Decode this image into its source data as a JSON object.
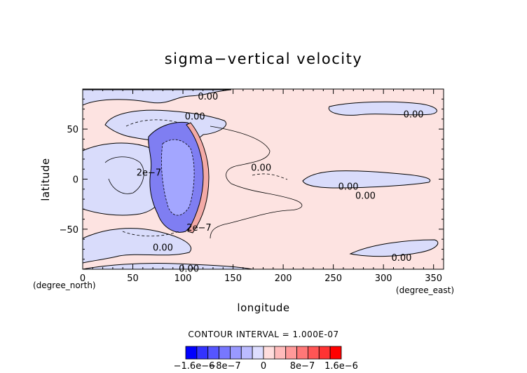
{
  "chart_data": {
    "type": "contour",
    "title": "sigma−vertical velocity",
    "xlabel": "longitude",
    "ylabel": "latitude",
    "xunit": "(degree_east)",
    "yunit": "(degree_north)",
    "xlim": [
      0,
      360
    ],
    "ylim": [
      -90,
      90
    ],
    "xticks": [
      0,
      50,
      100,
      150,
      200,
      250,
      300,
      350
    ],
    "yticks": [
      -50,
      0,
      50
    ],
    "contour_interval_text": "CONTOUR INTERVAL = 1.000E-07",
    "contour_labels": [
      {
        "text": "0.00",
        "lon": 125,
        "lat": 83
      },
      {
        "text": "0.00",
        "lon": 112,
        "lat": 63
      },
      {
        "text": "0.00",
        "lon": 330,
        "lat": 65
      },
      {
        "text": "0.00",
        "lon": 178,
        "lat": 12
      },
      {
        "text": "0.00",
        "lon": 265,
        "lat": -7
      },
      {
        "text": "0.00",
        "lon": 282,
        "lat": -16
      },
      {
        "text": "0.00",
        "lon": 80,
        "lat": -68
      },
      {
        "text": "0.00",
        "lon": 318,
        "lat": -78
      },
      {
        "text": "0.00",
        "lon": 106,
        "lat": -89
      },
      {
        "text": "2e−7",
        "lon": 116,
        "lat": -48
      },
      {
        "text": "2e−7",
        "lon": 66,
        "lat": 7
      }
    ],
    "colorbar": {
      "colors": [
        "#0000ff",
        "#3333ff",
        "#5555ff",
        "#7777ff",
        "#9999ff",
        "#bbbbff",
        "#ddddff",
        "#ffdddd",
        "#ffbbbb",
        "#ff9999",
        "#ff7777",
        "#ff5555",
        "#ff3333",
        "#ff0000"
      ],
      "tick_labels": [
        "−1.6e−6",
        "−8e−7",
        "0",
        "8e−7",
        "1.6e−6"
      ]
    }
  }
}
